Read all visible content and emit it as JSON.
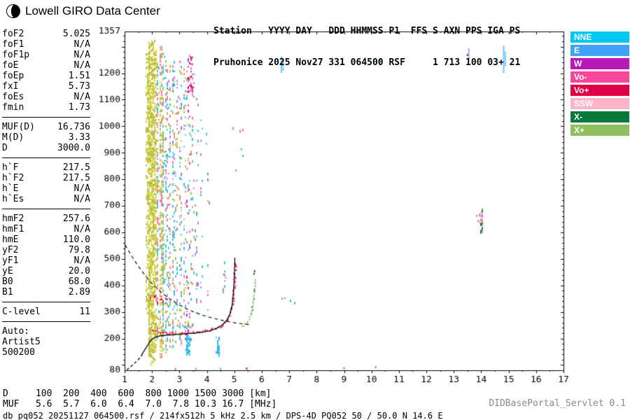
{
  "header": {
    "brand": "Lowell GIRO Data Center",
    "station_line1": "Station   YYYY DAY   DDD HHMMSS P1  FFS S AXN PPS IGA PS",
    "station_line2": "Pruhonice 2025 Nov27 331 064500 RSF     1 713 100 03+ 21"
  },
  "params": {
    "groups": [
      {
        "rows": [
          [
            "foF2",
            "5.025"
          ],
          [
            "foF1",
            "N/A"
          ],
          [
            "foF1p",
            "N/A"
          ],
          [
            "foE",
            "N/A"
          ],
          [
            "foEp",
            "1.51"
          ],
          [
            "fxI",
            "5.73"
          ],
          [
            "foEs",
            "N/A"
          ],
          [
            "fmin",
            "1.73"
          ]
        ]
      },
      {
        "rows": [
          [
            "MUF(D)",
            "16.736"
          ],
          [
            "M(D)",
            "3.33"
          ],
          [
            "D",
            "3000.0"
          ]
        ]
      },
      {
        "rows": [
          [
            "h`F",
            "217.5"
          ],
          [
            "h`F2",
            "217.5"
          ],
          [
            "h`E",
            "N/A"
          ],
          [
            "h`Es",
            "N/A"
          ]
        ]
      },
      {
        "rows": [
          [
            "hmF2",
            "257.6"
          ],
          [
            "hmF1",
            "N/A"
          ],
          [
            "hmE",
            "110.0"
          ],
          [
            "yF2",
            "79.8"
          ],
          [
            "yF1",
            "N/A"
          ],
          [
            "yE",
            "20.0"
          ],
          [
            "B0",
            "68.0"
          ],
          [
            "B1",
            "2.89"
          ]
        ]
      },
      {
        "rows": [
          [
            "C-level",
            "11"
          ]
        ]
      }
    ],
    "auto_label": "Auto:",
    "auto_lines": [
      "Artist5",
      "500200"
    ]
  },
  "legend": {
    "items": [
      {
        "label": "NNE",
        "color": "#00C8F0"
      },
      {
        "label": "E",
        "color": "#3FA2F7"
      },
      {
        "label": "W",
        "color": "#B818B8"
      },
      {
        "label": "Vo-",
        "color": "#F8479A"
      },
      {
        "label": "Vo+",
        "color": "#E00045"
      },
      {
        "label": "SSW",
        "color": "#FFB3C8"
      },
      {
        "label": "X-",
        "color": "#0A7A3C"
      },
      {
        "label": "X+",
        "color": "#8FBF5C"
      }
    ]
  },
  "footer": {
    "d_label": "D",
    "d_values": [
      "100",
      "200",
      "400",
      "600",
      "800",
      "1000",
      "1500",
      "3000"
    ],
    "d_unit": "[km]",
    "muf_label": "MUF",
    "muf_values": [
      "5.6",
      "5.7",
      "6.0",
      "6.4",
      "7.0",
      "7.8",
      "10.3",
      "16.7"
    ],
    "muf_unit": "[MHz]",
    "status": "db pq052 20251127 064500.rsf / 214fx512h 5 kHz 2.5 km / DPS-4D PQ052 50 / 50.0 N 14.6 E",
    "servlet": "DIDBasePortal_Servlet 0.1"
  },
  "chart_data": {
    "type": "scatter",
    "title": "Pruhonice ionogram 2025 Nov27 064500",
    "xlabel": "[MHz]",
    "ylabel": "[km]",
    "xlim": [
      1,
      17
    ],
    "ylim": [
      80,
      1357
    ],
    "x_tick_labels": [
      1,
      2,
      3,
      4,
      5,
      6,
      7,
      8,
      9,
      10,
      11,
      12,
      13,
      14,
      15,
      16,
      17
    ],
    "y_tick_labels": [
      1357,
      1200,
      1100,
      1000,
      900,
      800,
      700,
      600,
      500,
      400,
      300,
      200,
      80
    ],
    "palette": {
      "olive": "#BCBE3A",
      "yellow": "#D8D855",
      "cyan": "#2BC6E8",
      "blue": "#3B9DF5",
      "pink": "#F273B4",
      "magenta": "#C028C0",
      "red": "#E00045",
      "ltgreen": "#8FBF5C",
      "dkgreen": "#0A7A3C"
    },
    "noise_bands": [
      {
        "x": 1.8,
        "xs": 0.03,
        "y0": 300,
        "y1": 1280,
        "n": 150,
        "colors": [
          "#BCBE3A",
          "#D8D855"
        ]
      },
      {
        "x": 1.87,
        "xs": 0.03,
        "y0": 120,
        "y1": 1320,
        "n": 280,
        "colors": [
          "#BCBE3A",
          "#D8D855",
          "#BCBE3A"
        ]
      },
      {
        "x": 1.95,
        "xs": 0.04,
        "y0": 100,
        "y1": 1330,
        "n": 320,
        "colors": [
          "#BCBE3A",
          "#D8D855"
        ]
      },
      {
        "x": 2.03,
        "xs": 0.04,
        "y0": 100,
        "y1": 1330,
        "n": 300,
        "colors": [
          "#BCBE3A",
          "#D8D855",
          "#BCBE3A"
        ]
      },
      {
        "x": 2.1,
        "xs": 0.03,
        "y0": 150,
        "y1": 1300,
        "n": 220,
        "colors": [
          "#BCBE3A",
          "#D8D855"
        ]
      },
      {
        "x": 2.18,
        "xs": 0.03,
        "y0": 200,
        "y1": 1250,
        "n": 120,
        "colors": [
          "#BCBE3A",
          "#2BC6E8",
          "#F273B4"
        ]
      },
      {
        "x": 2.3,
        "xs": 0.04,
        "y0": 130,
        "y1": 1310,
        "n": 200,
        "colors": [
          "#BCBE3A",
          "#D8D855",
          "#F273B4"
        ]
      },
      {
        "x": 2.38,
        "xs": 0.03,
        "y0": 150,
        "y1": 1280,
        "n": 150,
        "colors": [
          "#BCBE3A",
          "#2BC6E8"
        ]
      },
      {
        "x": 2.5,
        "xs": 0.04,
        "y0": 150,
        "y1": 1260,
        "n": 90,
        "colors": [
          "#BCBE3A",
          "#2BC6E8",
          "#F273B4",
          "#3B9DF5"
        ]
      },
      {
        "x": 2.62,
        "xs": 0.04,
        "y0": 160,
        "y1": 1240,
        "n": 75,
        "colors": [
          "#BCBE3A",
          "#F273B4",
          "#2BC6E8"
        ]
      },
      {
        "x": 2.75,
        "xs": 0.04,
        "y0": 150,
        "y1": 1260,
        "n": 85,
        "colors": [
          "#BCBE3A",
          "#2BC6E8",
          "#3B9DF5",
          "#F273B4"
        ]
      },
      {
        "x": 2.88,
        "xs": 0.04,
        "y0": 180,
        "y1": 1200,
        "n": 60,
        "colors": [
          "#BCBE3A",
          "#F273B4",
          "#2BC6E8"
        ]
      },
      {
        "x": 3.02,
        "xs": 0.04,
        "y0": 160,
        "y1": 1250,
        "n": 70,
        "colors": [
          "#BCBE3A",
          "#2BC6E8",
          "#F273B4",
          "#3B9DF5"
        ]
      },
      {
        "x": 3.16,
        "xs": 0.04,
        "y0": 180,
        "y1": 1220,
        "n": 55,
        "colors": [
          "#2BC6E8",
          "#BCBE3A",
          "#F273B4"
        ]
      },
      {
        "x": 3.3,
        "xs": 0.05,
        "y0": 160,
        "y1": 1260,
        "n": 60,
        "colors": [
          "#2BC6E8",
          "#F273B4",
          "#BCBE3A",
          "#C028C0"
        ]
      },
      {
        "x": 3.45,
        "xs": 0.05,
        "y0": 200,
        "y1": 1200,
        "n": 45,
        "colors": [
          "#F273B4",
          "#2BC6E8",
          "#BCBE3A"
        ]
      },
      {
        "x": 3.6,
        "xs": 0.04,
        "y0": 250,
        "y1": 1150,
        "n": 28,
        "colors": [
          "#2BC6E8",
          "#F273B4",
          "#3B9DF5"
        ]
      },
      {
        "x": 3.78,
        "xs": 0.04,
        "y0": 300,
        "y1": 1100,
        "n": 14,
        "colors": [
          "#2BC6E8",
          "#F273B4"
        ]
      },
      {
        "x": 4.0,
        "xs": 0.05,
        "y0": 300,
        "y1": 1000,
        "n": 10,
        "colors": [
          "#F273B4",
          "#2BC6E8",
          "#3B9DF5"
        ]
      },
      {
        "x": 4.38,
        "xs": 0.05,
        "y0": 140,
        "y1": 210,
        "n": 26,
        "colors": [
          "#2BC6E8",
          "#3B9DF5"
        ]
      },
      {
        "x": 3.3,
        "xs": 0.09,
        "y0": 140,
        "y1": 215,
        "n": 35,
        "colors": [
          "#2BC6E8",
          "#3B9DF5"
        ]
      },
      {
        "x": 3.37,
        "xs": 0.1,
        "y0": 1130,
        "y1": 1270,
        "n": 30,
        "colors": [
          "#F273B4",
          "#C028C0",
          "#E00045"
        ]
      },
      {
        "x": 2.2,
        "xs": 0.35,
        "y0": 330,
        "y1": 380,
        "n": 25,
        "colors": [
          "#F273B4",
          "#E00045",
          "#BCBE3A"
        ]
      },
      {
        "x": 5.1,
        "xs": 0.25,
        "y0": 830,
        "y1": 1000,
        "n": 6,
        "colors": [
          "#F273B4",
          "#2BC6E8"
        ]
      },
      {
        "x": 4.62,
        "xs": 0.06,
        "y0": 380,
        "y1": 520,
        "n": 10,
        "colors": [
          "#2BC6E8",
          "#F273B4"
        ]
      },
      {
        "x": 14.0,
        "xs": 0.04,
        "y0": 600,
        "y1": 700,
        "n": 22,
        "colors": [
          "#8FBF5C",
          "#F273B4",
          "#0A7A3C"
        ]
      },
      {
        "x": 13.9,
        "xs": 0.12,
        "y0": 620,
        "y1": 680,
        "n": 8,
        "colors": [
          "#F273B4"
        ]
      },
      {
        "x": 6.9,
        "xs": 0.3,
        "y0": 330,
        "y1": 360,
        "n": 4,
        "colors": [
          "#3B9DF5",
          "#F273B4"
        ]
      }
    ],
    "segments": [
      {
        "x": 6.72,
        "y0": 1205,
        "y1": 1262,
        "color": "#3B9DF5"
      },
      {
        "x": 6.78,
        "y0": 1215,
        "y1": 1255,
        "color": "#2BC6E8"
      },
      {
        "x": 13.55,
        "y0": 1248,
        "y1": 1292,
        "color": "#3B9DF5"
      },
      {
        "x": 14.82,
        "y0": 1200,
        "y1": 1302,
        "color": "#3B9DF5"
      },
      {
        "x": 14.88,
        "y0": 1230,
        "y1": 1280,
        "color": "#2BC6E8"
      },
      {
        "x": 10.32,
        "y0": 1232,
        "y1": 1252,
        "color": "#2BC6E8"
      }
    ],
    "dots": [
      {
        "x": 2.85,
        "y": 86,
        "color": "#3B9DF5"
      },
      {
        "x": 3.6,
        "y": 86,
        "color": "#F273B4"
      },
      {
        "x": 4.5,
        "y": 87,
        "color": "#2BC6E8"
      },
      {
        "x": 5.45,
        "y": 88,
        "color": "#E00045"
      },
      {
        "x": 9.0,
        "y": 89,
        "color": "#3B9DF5"
      },
      {
        "x": 10.15,
        "y": 93,
        "color": "#3B9DF5"
      },
      {
        "x": 2.78,
        "y": 246,
        "color": "#8FBF5C"
      },
      {
        "x": 2.95,
        "y": 248,
        "color": "#8FBF5C"
      },
      {
        "x": 3.12,
        "y": 250,
        "color": "#8FBF5C"
      },
      {
        "x": 3.3,
        "y": 251,
        "color": "#8FBF5C"
      },
      {
        "x": 3.5,
        "y": 253,
        "color": "#8FBF5C"
      },
      {
        "x": 5.72,
        "y": 445,
        "color": "#0A7A3C"
      },
      {
        "x": 5.74,
        "y": 455,
        "color": "#0A7A3C"
      },
      {
        "x": 13.5,
        "y": 1270,
        "color": "#E00045"
      }
    ],
    "o_trace": {
      "pts": [
        [
          1.98,
          232
        ],
        [
          2.2,
          226
        ],
        [
          2.5,
          222
        ],
        [
          2.8,
          221
        ],
        [
          3.1,
          222
        ],
        [
          3.4,
          225
        ],
        [
          3.7,
          228
        ],
        [
          4.0,
          232
        ],
        [
          4.2,
          236
        ],
        [
          4.4,
          243
        ],
        [
          4.55,
          252
        ],
        [
          4.7,
          266
        ],
        [
          4.8,
          284
        ],
        [
          4.88,
          310
        ],
        [
          4.94,
          350
        ],
        [
          4.98,
          405
        ],
        [
          5.0,
          450
        ],
        [
          5.02,
          495
        ]
      ],
      "colors": [
        "#E00045",
        "#E00045",
        "#F8479A"
      ]
    },
    "x_trace": {
      "pts": [
        [
          5.28,
          248
        ],
        [
          5.38,
          256
        ],
        [
          5.48,
          268
        ],
        [
          5.56,
          285
        ],
        [
          5.62,
          310
        ],
        [
          5.67,
          345
        ],
        [
          5.71,
          390
        ],
        [
          5.735,
          432
        ]
      ],
      "colors": [
        "#8FBF5C",
        "#8FBF5C",
        "#0A7A3C"
      ]
    },
    "profile_solid": [
      [
        1.62,
        138
      ],
      [
        1.8,
        168
      ],
      [
        1.95,
        192
      ],
      [
        2.1,
        204
      ],
      [
        2.3,
        210
      ],
      [
        2.6,
        213
      ],
      [
        3.0,
        216
      ],
      [
        3.4,
        219
      ],
      [
        3.8,
        223
      ],
      [
        4.1,
        229
      ],
      [
        4.35,
        238
      ],
      [
        4.55,
        250
      ],
      [
        4.72,
        268
      ],
      [
        4.84,
        292
      ],
      [
        4.92,
        325
      ],
      [
        4.97,
        372
      ],
      [
        5.0,
        430
      ],
      [
        5.02,
        505
      ]
    ],
    "profile_dashed": [
      [
        1.08,
        82
      ],
      [
        1.22,
        93
      ],
      [
        1.38,
        108
      ],
      [
        1.55,
        126
      ],
      [
        1.65,
        140
      ]
    ],
    "dashed_curve": [
      [
        1.02,
        552
      ],
      [
        1.25,
        512
      ],
      [
        1.5,
        472
      ],
      [
        1.75,
        437
      ],
      [
        2.0,
        407
      ],
      [
        2.3,
        377
      ],
      [
        2.6,
        352
      ],
      [
        2.9,
        332
      ],
      [
        3.2,
        315
      ],
      [
        3.5,
        301
      ],
      [
        3.8,
        289
      ],
      [
        4.1,
        280
      ],
      [
        4.4,
        272
      ],
      [
        4.7,
        265
      ],
      [
        5.0,
        259
      ],
      [
        5.3,
        255
      ],
      [
        5.55,
        252
      ]
    ]
  }
}
